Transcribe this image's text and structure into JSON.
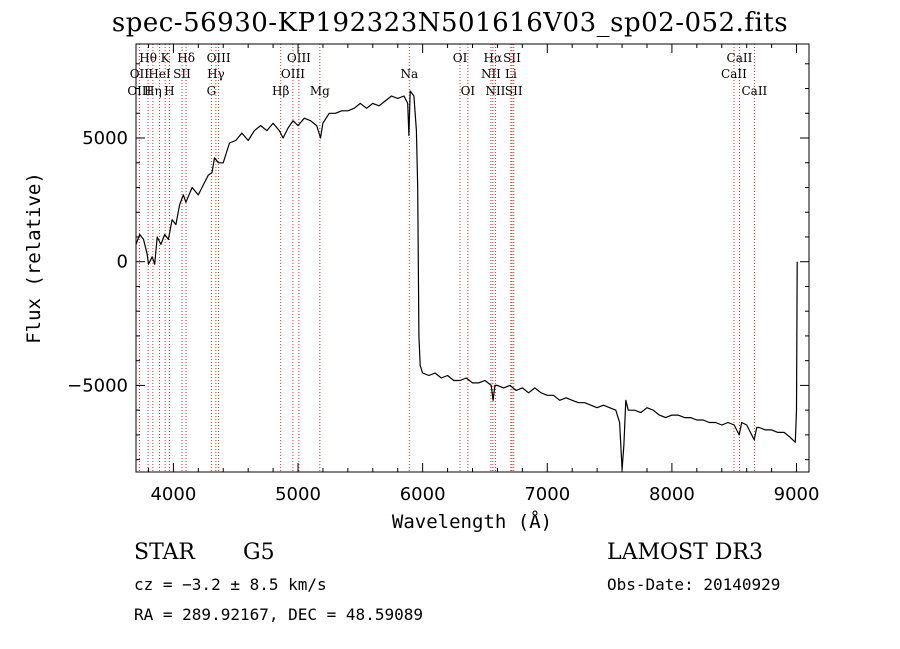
{
  "chart_data": {
    "type": "line",
    "title": "spec-56930-KP192323N501616V03_sp02-052.fits",
    "xlabel": "Wavelength (Å)",
    "ylabel": "Flux (relative)",
    "xlim": [
      3700,
      9100
    ],
    "ylim": [
      -8500,
      8800
    ],
    "x_ticks": [
      4000,
      5000,
      6000,
      7000,
      8000,
      9000
    ],
    "x_tick_labels": [
      "4000",
      "5000",
      "6000",
      "7000",
      "8000",
      "9000"
    ],
    "y_ticks": [
      -5000,
      0,
      5000
    ],
    "y_tick_labels": [
      "−5000",
      "0",
      "5000"
    ],
    "series": [
      {
        "name": "spectrum",
        "points": [
          [
            3700,
            700
          ],
          [
            3730,
            1100
          ],
          [
            3760,
            900
          ],
          [
            3790,
            300
          ],
          [
            3800,
            -100
          ],
          [
            3830,
            200
          ],
          [
            3850,
            -100
          ],
          [
            3870,
            1000
          ],
          [
            3900,
            700
          ],
          [
            3930,
            1100
          ],
          [
            3960,
            900
          ],
          [
            3990,
            1700
          ],
          [
            4020,
            1500
          ],
          [
            4050,
            2300
          ],
          [
            4080,
            2700
          ],
          [
            4100,
            2400
          ],
          [
            4150,
            3000
          ],
          [
            4200,
            2700
          ],
          [
            4250,
            3200
          ],
          [
            4280,
            3500
          ],
          [
            4310,
            3600
          ],
          [
            4330,
            4200
          ],
          [
            4360,
            4000
          ],
          [
            4400,
            4000
          ],
          [
            4450,
            4800
          ],
          [
            4500,
            4900
          ],
          [
            4550,
            5200
          ],
          [
            4600,
            4900
          ],
          [
            4650,
            5300
          ],
          [
            4700,
            5500
          ],
          [
            4750,
            5300
          ],
          [
            4800,
            5600
          ],
          [
            4850,
            5300
          ],
          [
            4880,
            5000
          ],
          [
            4920,
            5400
          ],
          [
            4960,
            5700
          ],
          [
            5000,
            5500
          ],
          [
            5050,
            5800
          ],
          [
            5100,
            5700
          ],
          [
            5150,
            5500
          ],
          [
            5180,
            5000
          ],
          [
            5200,
            5600
          ],
          [
            5250,
            6000
          ],
          [
            5300,
            6000
          ],
          [
            5350,
            6100
          ],
          [
            5400,
            6100
          ],
          [
            5450,
            6200
          ],
          [
            5500,
            6400
          ],
          [
            5550,
            6200
          ],
          [
            5600,
            6400
          ],
          [
            5650,
            6300
          ],
          [
            5700,
            6500
          ],
          [
            5750,
            6700
          ],
          [
            5800,
            6600
          ],
          [
            5850,
            6700
          ],
          [
            5880,
            6400
          ],
          [
            5890,
            5100
          ],
          [
            5900,
            6900
          ],
          [
            5930,
            6700
          ],
          [
            5950,
            5300
          ],
          [
            5960,
            3000
          ],
          [
            5965,
            0
          ],
          [
            5970,
            -3000
          ],
          [
            5980,
            -4200
          ],
          [
            6000,
            -4500
          ],
          [
            6050,
            -4600
          ],
          [
            6100,
            -4500
          ],
          [
            6150,
            -4700
          ],
          [
            6200,
            -4600
          ],
          [
            6250,
            -4800
          ],
          [
            6300,
            -4800
          ],
          [
            6350,
            -4700
          ],
          [
            6400,
            -4900
          ],
          [
            6450,
            -4900
          ],
          [
            6500,
            -4800
          ],
          [
            6550,
            -5000
          ],
          [
            6565,
            -5600
          ],
          [
            6580,
            -5000
          ],
          [
            6600,
            -5000
          ],
          [
            6650,
            -5100
          ],
          [
            6700,
            -5000
          ],
          [
            6750,
            -5200
          ],
          [
            6800,
            -5100
          ],
          [
            6850,
            -5300
          ],
          [
            6900,
            -5100
          ],
          [
            6950,
            -5300
          ],
          [
            7000,
            -5400
          ],
          [
            7050,
            -5400
          ],
          [
            7100,
            -5600
          ],
          [
            7150,
            -5500
          ],
          [
            7200,
            -5600
          ],
          [
            7250,
            -5700
          ],
          [
            7300,
            -5700
          ],
          [
            7350,
            -5800
          ],
          [
            7400,
            -5900
          ],
          [
            7450,
            -5800
          ],
          [
            7500,
            -5900
          ],
          [
            7550,
            -6000
          ],
          [
            7580,
            -6500
          ],
          [
            7600,
            -8400
          ],
          [
            7615,
            -7400
          ],
          [
            7630,
            -5600
          ],
          [
            7650,
            -6000
          ],
          [
            7700,
            -6000
          ],
          [
            7750,
            -6100
          ],
          [
            7800,
            -5900
          ],
          [
            7850,
            -6000
          ],
          [
            7900,
            -6200
          ],
          [
            7950,
            -6300
          ],
          [
            8000,
            -6200
          ],
          [
            8050,
            -6200
          ],
          [
            8100,
            -6300
          ],
          [
            8150,
            -6300
          ],
          [
            8200,
            -6400
          ],
          [
            8250,
            -6400
          ],
          [
            8300,
            -6500
          ],
          [
            8350,
            -6500
          ],
          [
            8400,
            -6600
          ],
          [
            8450,
            -6500
          ],
          [
            8500,
            -6600
          ],
          [
            8540,
            -7000
          ],
          [
            8560,
            -6500
          ],
          [
            8600,
            -6600
          ],
          [
            8660,
            -7200
          ],
          [
            8680,
            -6700
          ],
          [
            8700,
            -6700
          ],
          [
            8750,
            -6800
          ],
          [
            8800,
            -6800
          ],
          [
            8850,
            -6900
          ],
          [
            8900,
            -6900
          ],
          [
            8950,
            -7100
          ],
          [
            8990,
            -7300
          ],
          [
            9000,
            -6000
          ],
          [
            9005,
            0
          ]
        ]
      }
    ],
    "line_markers": [
      {
        "label": "Hθ",
        "wavelength": 3797
      },
      {
        "label": "OII",
        "wavelength": 3727
      },
      {
        "label": "OIII",
        "wavelength": 3727
      },
      {
        "label": "K",
        "wavelength": 3934
      },
      {
        "label": "HeI",
        "wavelength": 3889
      },
      {
        "label": "Hη",
        "wavelength": 3835
      },
      {
        "label": "Hδ",
        "wavelength": 4102
      },
      {
        "label": "SII",
        "wavelength": 4069
      },
      {
        "label": "H",
        "wavelength": 3968
      },
      {
        "label": "OIII",
        "wavelength": 4363
      },
      {
        "label": "Hγ",
        "wavelength": 4341
      },
      {
        "label": "G",
        "wavelength": 4305
      },
      {
        "label": "OIII",
        "wavelength": 5007
      },
      {
        "label": "OIII",
        "wavelength": 4959
      },
      {
        "label": "Hβ",
        "wavelength": 4861
      },
      {
        "label": "Mg",
        "wavelength": 5175
      },
      {
        "label": "Na",
        "wavelength": 5893
      },
      {
        "label": "OI",
        "wavelength": 6300
      },
      {
        "label": "OI",
        "wavelength": 6363
      },
      {
        "label": "Hα",
        "wavelength": 6563
      },
      {
        "label": "NII",
        "wavelength": 6548
      },
      {
        "label": "NII",
        "wavelength": 6584
      },
      {
        "label": "SII",
        "wavelength": 6717
      },
      {
        "label": "Li",
        "wavelength": 6708
      },
      {
        "label": "SII",
        "wavelength": 6731
      },
      {
        "label": "CaII",
        "wavelength": 8542
      },
      {
        "label": "CaII",
        "wavelength": 8498
      },
      {
        "label": "CaII",
        "wavelength": 8662
      }
    ]
  },
  "info": {
    "object_class": "STAR",
    "subclass": "G5",
    "survey": "LAMOST DR3",
    "cz": "cz = −3.2 ± 8.5 km/s",
    "obs_date": "Obs-Date: 20140929",
    "coords": "RA = 289.92167, DEC =  48.59089"
  }
}
